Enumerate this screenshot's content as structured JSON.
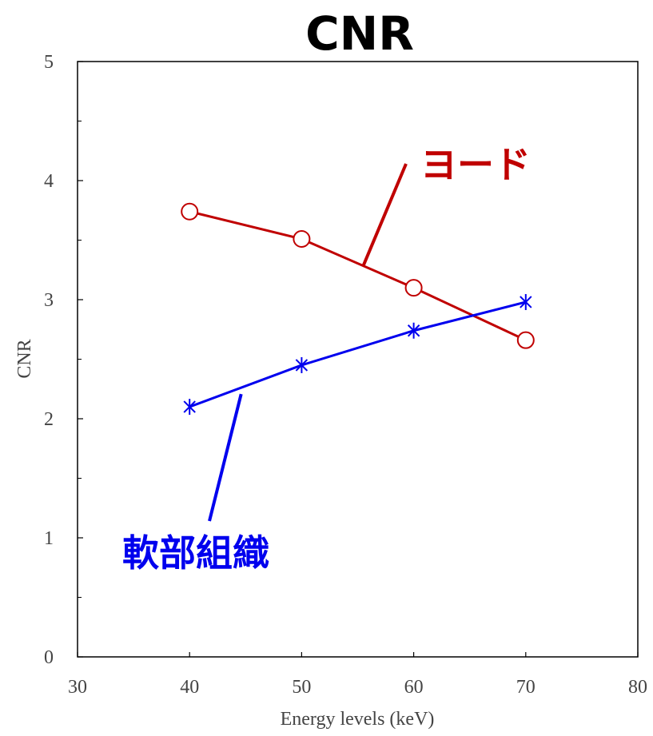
{
  "chart_data": {
    "type": "line",
    "title": "CNR",
    "xlabel": "Energy levels (keV)",
    "ylabel": "CNR",
    "xlim": [
      30,
      80
    ],
    "ylim": [
      0,
      5
    ],
    "x_ticks": [
      30,
      40,
      50,
      60,
      70,
      80
    ],
    "y_ticks": [
      0,
      1,
      2,
      3,
      4,
      5
    ],
    "grid": false,
    "x": [
      40,
      50,
      60,
      70
    ],
    "series": [
      {
        "name": "ヨード",
        "values": [
          3.74,
          3.51,
          3.1,
          2.66
        ],
        "color": "#c00000",
        "marker": "circle"
      },
      {
        "name": "軟部組織",
        "values": [
          2.1,
          2.45,
          2.74,
          2.98
        ],
        "color": "#0000ee",
        "marker": "asterisk"
      }
    ]
  }
}
